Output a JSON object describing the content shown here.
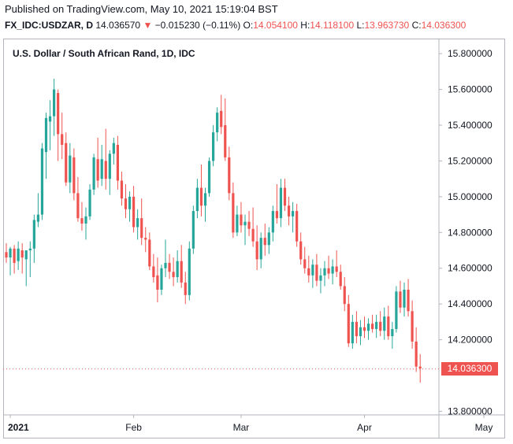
{
  "header": {
    "published": "Published on TradingView.com, May 10, 2021 15:19:04 BST",
    "symbol": "FX_IDC:USDZAR, D",
    "last": "14.036570",
    "down_arrow": "▼",
    "change": "−0.015230 (−0.11%)",
    "o_label": "O:",
    "o_value": "14.054100",
    "h_label": "H:",
    "h_value": "14.118100",
    "l_label": "L:",
    "l_value": "13.963730",
    "c_label": "C:",
    "c_value": "14.036300"
  },
  "colors": {
    "up": "#26a69a",
    "down": "#ef5350",
    "text": "#131722",
    "border": "#b2b5be"
  },
  "chart_data": {
    "type": "candlestick",
    "title": "U.S. Dollar / South African Rand, 1D, IDC",
    "ylim": [
      13.78,
      15.88
    ],
    "y_ticks": [
      "15.800000",
      "15.600000",
      "15.400000",
      "15.200000",
      "15.000000",
      "14.800000",
      "14.600000",
      "14.400000",
      "14.200000",
      "13.800000"
    ],
    "x_ticks": [
      "2021",
      "Feb",
      "Mar",
      "Apr",
      "May"
    ],
    "x_tick_index": [
      1,
      32,
      59,
      90,
      120
    ],
    "last_price_label": "14.036300",
    "last_price": 14.0363,
    "ohlc": [
      [
        14.69,
        14.74,
        14.63,
        14.66
      ],
      [
        14.66,
        14.72,
        14.56,
        14.71
      ],
      [
        14.71,
        14.73,
        14.57,
        14.63
      ],
      [
        14.64,
        14.75,
        14.59,
        14.71
      ],
      [
        14.7,
        14.74,
        14.57,
        14.66
      ],
      [
        14.65,
        14.7,
        14.5,
        14.7
      ],
      [
        14.7,
        14.75,
        14.55,
        14.71
      ],
      [
        14.71,
        14.9,
        14.63,
        14.87
      ],
      [
        14.86,
        15.02,
        14.83,
        14.9
      ],
      [
        14.9,
        15.3,
        14.87,
        15.27
      ],
      [
        15.25,
        15.47,
        15.1,
        15.44
      ],
      [
        15.42,
        15.54,
        15.26,
        15.45
      ],
      [
        15.45,
        15.66,
        15.34,
        15.6
      ],
      [
        15.58,
        15.6,
        15.2,
        15.35
      ],
      [
        15.35,
        15.47,
        15.21,
        15.29
      ],
      [
        15.3,
        15.36,
        15.06,
        15.08
      ],
      [
        15.08,
        15.3,
        15.02,
        15.23
      ],
      [
        15.22,
        15.27,
        14.98,
        15.02
      ],
      [
        15.02,
        15.11,
        14.86,
        14.88
      ],
      [
        14.88,
        14.97,
        14.81,
        14.85
      ],
      [
        14.85,
        14.94,
        14.76,
        14.89
      ],
      [
        14.89,
        15.07,
        14.87,
        15.04
      ],
      [
        15.04,
        15.24,
        15.01,
        15.22
      ],
      [
        15.21,
        15.33,
        15.05,
        15.09
      ],
      [
        15.1,
        15.29,
        15.06,
        15.21
      ],
      [
        15.2,
        15.38,
        15.04,
        15.1
      ],
      [
        15.1,
        15.26,
        15.01,
        15.24
      ],
      [
        15.24,
        15.33,
        15.18,
        15.3
      ],
      [
        15.29,
        15.34,
        15.04,
        15.09
      ],
      [
        15.09,
        15.14,
        14.95,
        14.99
      ],
      [
        14.99,
        15.07,
        14.88,
        14.93
      ],
      [
        14.93,
        15.03,
        14.86,
        15.0
      ],
      [
        15.0,
        15.06,
        14.8,
        14.83
      ],
      [
        14.83,
        14.93,
        14.76,
        14.88
      ],
      [
        14.88,
        14.99,
        14.73,
        14.77
      ],
      [
        14.77,
        14.83,
        14.69,
        14.76
      ],
      [
        14.76,
        14.8,
        14.59,
        14.61
      ],
      [
        14.61,
        14.68,
        14.52,
        14.55
      ],
      [
        14.56,
        14.66,
        14.41,
        14.48
      ],
      [
        14.48,
        14.62,
        14.45,
        14.6
      ],
      [
        14.6,
        14.76,
        14.55,
        14.63
      ],
      [
        14.63,
        14.68,
        14.54,
        14.58
      ],
      [
        14.58,
        14.66,
        14.5,
        14.55
      ],
      [
        14.55,
        14.7,
        14.52,
        14.64
      ],
      [
        14.64,
        14.73,
        14.49,
        14.52
      ],
      [
        14.52,
        14.58,
        14.4,
        14.45
      ],
      [
        14.45,
        14.75,
        14.42,
        14.71
      ],
      [
        14.71,
        14.95,
        14.68,
        14.92
      ],
      [
        14.92,
        15.1,
        14.88,
        15.05
      ],
      [
        15.05,
        15.18,
        14.89,
        14.95
      ],
      [
        14.95,
        15.05,
        14.86,
        15.02
      ],
      [
        15.02,
        15.22,
        15.0,
        15.2
      ],
      [
        15.2,
        15.4,
        15.17,
        15.36
      ],
      [
        15.36,
        15.5,
        15.31,
        15.47
      ],
      [
        15.48,
        15.57,
        15.35,
        15.39
      ],
      [
        15.4,
        15.55,
        15.2,
        15.22
      ],
      [
        15.22,
        15.28,
        14.98,
        15.02
      ],
      [
        15.02,
        15.08,
        14.77,
        14.8
      ],
      [
        14.8,
        14.95,
        14.78,
        14.9
      ],
      [
        14.9,
        14.97,
        14.8,
        14.84
      ],
      [
        14.84,
        14.9,
        14.73,
        14.86
      ],
      [
        14.86,
        14.92,
        14.78,
        14.82
      ],
      [
        14.82,
        14.94,
        14.72,
        14.75
      ],
      [
        14.75,
        14.84,
        14.59,
        14.65
      ],
      [
        14.65,
        14.8,
        14.6,
        14.77
      ],
      [
        14.77,
        14.85,
        14.67,
        14.73
      ],
      [
        14.73,
        14.83,
        14.68,
        14.8
      ],
      [
        14.8,
        14.95,
        14.75,
        14.92
      ],
      [
        14.92,
        15.07,
        14.85,
        14.88
      ],
      [
        14.88,
        15.1,
        14.83,
        15.05
      ],
      [
        15.05,
        15.1,
        14.92,
        14.95
      ],
      [
        14.95,
        15.0,
        14.84,
        14.89
      ],
      [
        14.89,
        14.97,
        14.8,
        14.92
      ],
      [
        14.92,
        14.96,
        14.72,
        14.75
      ],
      [
        14.75,
        14.8,
        14.62,
        14.65
      ],
      [
        14.65,
        14.72,
        14.57,
        14.6
      ],
      [
        14.6,
        14.67,
        14.52,
        14.56
      ],
      [
        14.56,
        14.65,
        14.49,
        14.62
      ],
      [
        14.62,
        14.68,
        14.5,
        14.53
      ],
      [
        14.53,
        14.6,
        14.46,
        14.56
      ],
      [
        14.56,
        14.64,
        14.5,
        14.6
      ],
      [
        14.6,
        14.67,
        14.54,
        14.57
      ],
      [
        14.57,
        14.65,
        14.51,
        14.61
      ],
      [
        14.61,
        14.7,
        14.55,
        14.58
      ],
      [
        14.58,
        14.62,
        14.48,
        14.5
      ],
      [
        14.5,
        14.55,
        14.36,
        14.4
      ],
      [
        14.4,
        14.45,
        14.16,
        14.18
      ],
      [
        14.18,
        14.34,
        14.15,
        14.3
      ],
      [
        14.3,
        14.36,
        14.18,
        14.22
      ],
      [
        14.22,
        14.31,
        14.17,
        14.27
      ],
      [
        14.27,
        14.33,
        14.21,
        14.25
      ],
      [
        14.25,
        14.32,
        14.2,
        14.29
      ],
      [
        14.29,
        14.34,
        14.24,
        14.26
      ],
      [
        14.26,
        14.34,
        14.21,
        14.3
      ],
      [
        14.3,
        14.36,
        14.22,
        14.25
      ],
      [
        14.25,
        14.38,
        14.2,
        14.33
      ],
      [
        14.33,
        14.39,
        14.2,
        14.22
      ],
      [
        14.22,
        14.3,
        14.15,
        14.26
      ],
      [
        14.26,
        14.5,
        14.24,
        14.47
      ],
      [
        14.47,
        14.53,
        14.35,
        14.38
      ],
      [
        14.38,
        14.52,
        14.33,
        14.48
      ],
      [
        14.48,
        14.54,
        14.33,
        14.36
      ],
      [
        14.36,
        14.42,
        14.15,
        14.19
      ],
      [
        14.19,
        14.27,
        14.02,
        14.05
      ],
      [
        14.05,
        14.12,
        13.96,
        14.04
      ]
    ]
  }
}
